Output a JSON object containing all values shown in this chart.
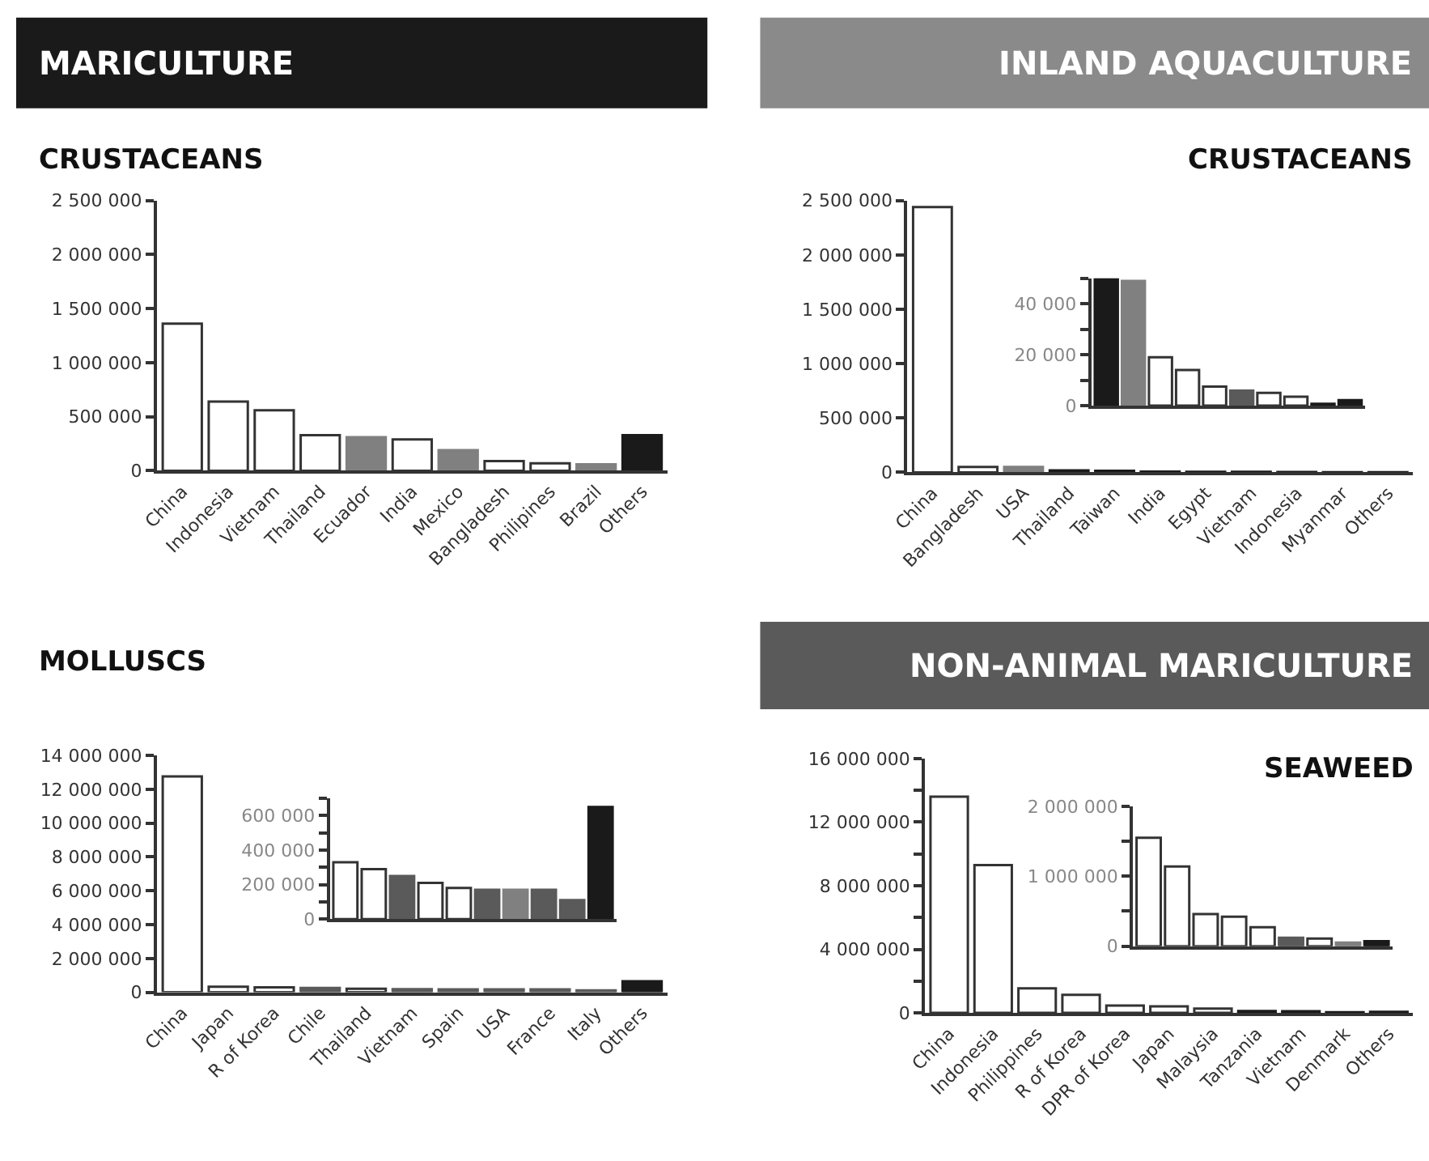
{
  "chart_data": [
    {
      "type": "bar",
      "title": "MARICULTURE",
      "subtitle": "CRUSTACEANS",
      "categories": [
        "China",
        "Indonesia",
        "Vietnam",
        "Thailand",
        "Ecuador",
        "India",
        "Mexico",
        "Bangladesh",
        "Philipines",
        "Brazil",
        "Others"
      ],
      "values": [
        1360000,
        640000,
        560000,
        330000,
        310000,
        290000,
        190000,
        90000,
        70000,
        60000,
        330000
      ],
      "colors": [
        "#ffffff",
        "#ffffff",
        "#ffffff",
        "#ffffff",
        "#808080",
        "#ffffff",
        "#808080",
        "#ffffff",
        "#ffffff",
        "#808080",
        "#1a1a1a"
      ],
      "ylim": [
        0,
        2500000
      ],
      "yticks": [
        {
          "value": 0,
          "label": "0"
        },
        {
          "value": 500000,
          "label": "500 000"
        },
        {
          "value": 1000000,
          "label": "1 000 000"
        },
        {
          "value": 1500000,
          "label": "1 500 000"
        },
        {
          "value": 2000000,
          "label": "2 000 000"
        },
        {
          "value": 2500000,
          "label": "2 500 000"
        }
      ]
    },
    {
      "type": "bar",
      "title": "MOLLUSCS",
      "categories": [
        "China",
        "Japan",
        "R of Korea",
        "Chile",
        "Thailand",
        "Vietnam",
        "Spain",
        "USA",
        "France",
        "Italy",
        "Others"
      ],
      "values": [
        12750000,
        330000,
        290000,
        250000,
        210000,
        180000,
        170000,
        170000,
        170000,
        110000,
        650000
      ],
      "colors": [
        "#ffffff",
        "#ffffff",
        "#ffffff",
        "#5a5a5a",
        "#ffffff",
        "#5a5a5a",
        "#5a5a5a",
        "#5a5a5a",
        "#5a5a5a",
        "#5a5a5a",
        "#1a1a1a"
      ],
      "ylim": [
        0,
        14000000
      ],
      "yticks": [
        {
          "value": 0,
          "label": "0"
        },
        {
          "value": 2000000,
          "label": "2 000 000"
        },
        {
          "value": 4000000,
          "label": "4 000 000"
        },
        {
          "value": 6000000,
          "label": "6 000 000"
        },
        {
          "value": 8000000,
          "label": "8 000 000"
        },
        {
          "value": 10000000,
          "label": "10 000 000"
        },
        {
          "value": 12000000,
          "label": "12 000 000"
        },
        {
          "value": 14000000,
          "label": "14 000 000"
        }
      ]
    },
    {
      "type": "bar",
      "categories": [
        null,
        null,
        null,
        null,
        null,
        null,
        null,
        null,
        null,
        null
      ],
      "values": [
        330000,
        290000,
        250000,
        210000,
        180000,
        170000,
        170000,
        170000,
        110000,
        650000
      ],
      "colors": [
        "#ffffff",
        "#ffffff",
        "#5a5a5a",
        "#ffffff",
        "#ffffff",
        "#5a5a5a",
        "#808080",
        "#5a5a5a",
        "#5a5a5a",
        "#1a1a1a"
      ],
      "ylim": [
        0,
        700000
      ],
      "yticks": [
        {
          "value": 0,
          "label": "0"
        },
        {
          "value": 100000,
          "label": null
        },
        {
          "value": 200000,
          "label": "200 000"
        },
        {
          "value": 300000,
          "label": null
        },
        {
          "value": 400000,
          "label": "400 000"
        },
        {
          "value": 500000,
          "label": null
        },
        {
          "value": 600000,
          "label": "600 000"
        },
        {
          "value": 700000,
          "label": null
        }
      ],
      "tick_labels": "y"
    },
    {
      "type": "bar",
      "title": "INLAND AQUACULTURE",
      "subtitle": "CRUSTACEANS",
      "categories": [
        "China",
        "Bangladesh",
        "USA",
        "Thailand",
        "Taiwan",
        "India",
        "Egypt",
        "Vietnam",
        "Indonesia",
        "Myanmar",
        "Others"
      ],
      "values": [
        2440000,
        50000,
        49000,
        19000,
        14000,
        7500,
        5900,
        5000,
        3500,
        700,
        2100
      ],
      "colors": [
        "#ffffff",
        "#ffffff",
        "#808080",
        "#1a1a1a",
        "#1a1a1a",
        "#1a1a1a",
        "#1a1a1a",
        "#1a1a1a",
        "#1a1a1a",
        "#1a1a1a",
        "#1a1a1a"
      ],
      "ylim": [
        0,
        2500000
      ],
      "yticks": [
        {
          "value": 0,
          "label": "0"
        },
        {
          "value": 500000,
          "label": "500 000"
        },
        {
          "value": 1000000,
          "label": "1 000 000"
        },
        {
          "value": 1500000,
          "label": "1 500 000"
        },
        {
          "value": 2000000,
          "label": "2 000 000"
        },
        {
          "value": 2500000,
          "label": "2 500 000"
        }
      ]
    },
    {
      "type": "bar",
      "categories": [
        null,
        null,
        null,
        null,
        null,
        null,
        null,
        null,
        null,
        null
      ],
      "values": [
        50000,
        49000,
        19000,
        14000,
        7500,
        5900,
        5000,
        3500,
        700,
        2100
      ],
      "colors": [
        "#1a1a1a",
        "#808080",
        "#ffffff",
        "#ffffff",
        "#ffffff",
        "#5a5a5a",
        "#ffffff",
        "#ffffff",
        "#1a1a1a",
        "#1a1a1a"
      ],
      "ylim": [
        0,
        50000
      ],
      "yticks": [
        {
          "value": 0,
          "label": "0"
        },
        {
          "value": 10000,
          "label": null
        },
        {
          "value": 20000,
          "label": "20 000"
        },
        {
          "value": 30000,
          "label": null
        },
        {
          "value": 40000,
          "label": "40 000"
        },
        {
          "value": 50000,
          "label": null
        }
      ],
      "tick_labels": "y"
    },
    {
      "type": "bar",
      "title": "NON-ANIMAL MARICULTURE",
      "subtitle": "SEAWEED",
      "categories": [
        "China",
        "Indonesia",
        "Philippines",
        "R of Korea",
        "DPR of Korea",
        "Japan",
        "Malaysia",
        "Tanzania",
        "Vietnam",
        "Denmark",
        "Others"
      ],
      "values": [
        13600000,
        9300000,
        1550000,
        1140000,
        460000,
        420000,
        270000,
        120000,
        110000,
        50000,
        70000
      ],
      "colors": [
        "#ffffff",
        "#ffffff",
        "#ffffff",
        "#ffffff",
        "#ffffff",
        "#ffffff",
        "#ffffff",
        "#1a1a1a",
        "#1a1a1a",
        "#1a1a1a",
        "#1a1a1a"
      ],
      "ylim": [
        0,
        16000000
      ],
      "yticks": [
        {
          "value": 0,
          "label": "0"
        },
        {
          "value": 2000000,
          "label": null
        },
        {
          "value": 4000000,
          "label": "4 000 000"
        },
        {
          "value": 6000000,
          "label": null
        },
        {
          "value": 8000000,
          "label": "8 000 000"
        },
        {
          "value": 10000000,
          "label": null
        },
        {
          "value": 12000000,
          "label": "12 000 000"
        },
        {
          "value": 14000000,
          "label": null
        },
        {
          "value": 16000000,
          "label": "16 000 000"
        }
      ]
    },
    {
      "type": "bar",
      "categories": [
        null,
        null,
        null,
        null,
        null,
        null,
        null,
        null,
        null
      ],
      "values": [
        1550000,
        1140000,
        460000,
        420000,
        270000,
        120000,
        110000,
        50000,
        70000
      ],
      "colors": [
        "#ffffff",
        "#ffffff",
        "#ffffff",
        "#ffffff",
        "#ffffff",
        "#5a5a5a",
        "#ffffff",
        "#808080",
        "#1a1a1a"
      ],
      "ylim": [
        0,
        2000000
      ],
      "yticks": [
        {
          "value": 0,
          "label": "0"
        },
        {
          "value": 500000,
          "label": null
        },
        {
          "value": 1000000,
          "label": "1 000 000"
        },
        {
          "value": 1500000,
          "label": null
        },
        {
          "value": 2000000,
          "label": "2 000 000"
        }
      ],
      "tick_labels": "y"
    }
  ]
}
